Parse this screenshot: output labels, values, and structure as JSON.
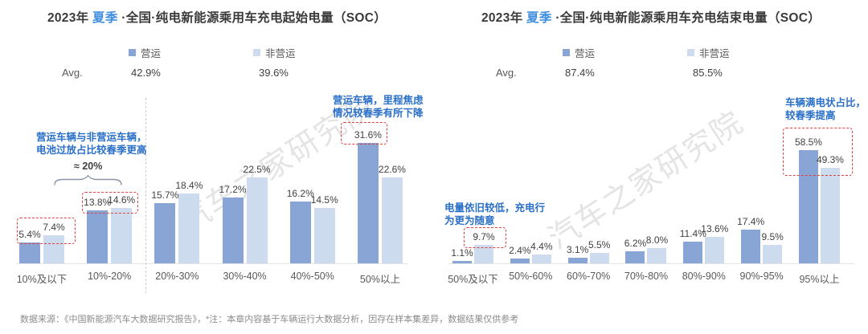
{
  "page": {
    "footer": "数据来源：《中国新能源汽车大数据研究报告》，*注：本章内容基于车辆运行大数据分析，因存在样本集差异，数据结果仅供参考",
    "watermark": "汽车之家研究院"
  },
  "colors": {
    "operating": "#88A5D6",
    "non_operating": "#CDDBEF",
    "season_blue": "#3E8EDE",
    "annotation_blue": "#2A6FC8",
    "highlight_red": "#E04040",
    "title_text": "#3A3A3A",
    "label_text": "#3F3F3F",
    "muted_text": "#595959",
    "footer_text": "#8C8C8C",
    "axis_line": "#E3E3E3",
    "divider": "#C9CDD4",
    "brace": "#8B95A8",
    "watermark": "#8A8A8A"
  },
  "chart_data": [
    {
      "type": "bar",
      "title": "2023年 夏季 ·全国·纯电新能源乘用车充电起始电量（SOC）",
      "title_parts": [
        "2023年 ",
        "夏季",
        " ·全国·纯电新能源乘用车充电起始电量（SOC）"
      ],
      "unit": "%",
      "grid": false,
      "ylim": [
        0,
        35
      ],
      "categories": [
        "10%及以下",
        "10%-20%",
        "20%-30%",
        "30%-40%",
        "40%-50%",
        "50%以上"
      ],
      "series": [
        {
          "name": "营运",
          "values": [
            5.4,
            13.8,
            15.7,
            17.2,
            16.2,
            31.6
          ]
        },
        {
          "name": "非营运",
          "values": [
            7.4,
            14.6,
            18.4,
            22.5,
            14.5,
            22.6
          ]
        }
      ],
      "avg_label": "Avg.",
      "avg_values": [
        "42.9%",
        "39.6%"
      ],
      "annotations": {
        "note_left": [
          "营运车辆与非营运车辆，",
          "电池过放占比较春季更高"
        ],
        "approx": "≈ 20%",
        "note_right": [
          "营运车辆，里程焦虑",
          "情况较春季有所下降"
        ]
      }
    },
    {
      "type": "bar",
      "title": "2023年 夏季 ·全国·纯电新能源乘用车充电结束电量（SOC）",
      "title_parts": [
        "2023年 ",
        "夏季",
        " ·全国·纯电新能源乘用车充电结束电量（SOC）"
      ],
      "unit": "%",
      "grid": false,
      "ylim": [
        0,
        60
      ],
      "categories": [
        "50%及以下",
        "50%-60%",
        "60%-70%",
        "70%-80%",
        "80%-90%",
        "90%-95%",
        "95%以上"
      ],
      "series": [
        {
          "name": "营运",
          "values": [
            1.1,
            2.4,
            3.1,
            6.2,
            11.4,
            17.4,
            58.5
          ]
        },
        {
          "name": "非营运",
          "values": [
            9.7,
            4.4,
            5.5,
            8.0,
            13.6,
            9.5,
            49.3
          ]
        }
      ],
      "avg_label": "Avg.",
      "avg_values": [
        "87.4%",
        "85.5%"
      ],
      "annotations": {
        "note_left": [
          "电量依旧较低，充电行",
          "为更为随意"
        ],
        "note_right": [
          "车辆满电状占比，",
          "较春季提高"
        ]
      }
    }
  ]
}
